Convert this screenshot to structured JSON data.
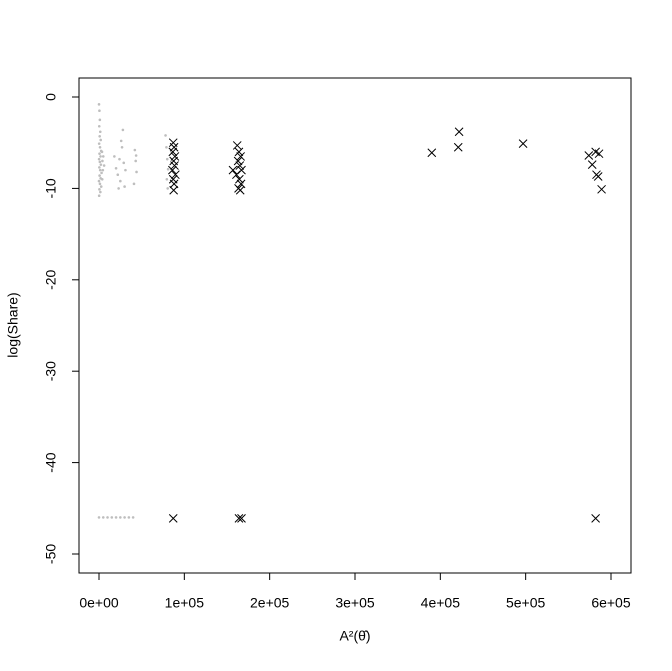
{
  "chart_data": {
    "type": "scatter",
    "xlabel": "A²(θ̂)",
    "ylabel": "log(Share)",
    "xlim": [
      -23440,
      623450
    ],
    "ylim": [
      -52.08,
      2.08
    ],
    "xticks": [
      {
        "value": 0,
        "label": "0e+00"
      },
      {
        "value": 100000,
        "label": "1e+05"
      },
      {
        "value": 200000,
        "label": "2e+05"
      },
      {
        "value": 300000,
        "label": "3e+05"
      },
      {
        "value": 400000,
        "label": "4e+05"
      },
      {
        "value": 500000,
        "label": "5e+05"
      },
      {
        "value": 600000,
        "label": "6e+05"
      }
    ],
    "yticks": [
      0,
      -10,
      -20,
      -30,
      -40,
      -50
    ],
    "grid": false,
    "series": [
      {
        "color": "#bebebe",
        "marker": "dot",
        "x": [
          0,
          500,
          1000,
          300,
          1500,
          800,
          2000,
          200,
          1200,
          2500,
          600,
          1800,
          100,
          1000,
          2200,
          400,
          1400,
          3000,
          700,
          1900,
          0,
          1100,
          2600,
          500,
          1600,
          200,
          3500,
          4000,
          4500,
          3800,
          5000,
          6000,
          18000,
          20000,
          22000,
          24000,
          25000,
          27000,
          28000,
          29000,
          30000,
          31000,
          26000,
          23000,
          42000,
          43000,
          44000,
          41000,
          43500,
          78000,
          79000,
          80000,
          81000,
          79500,
          80500,
          0,
          5000,
          10000,
          15000,
          20000,
          25000,
          30000,
          35000,
          40000
        ],
        "y": [
          -0.8,
          -1.5,
          -2.5,
          -3.2,
          -3.8,
          -4.3,
          -4.7,
          -5.1,
          -5.5,
          -5.9,
          -6.2,
          -6.5,
          -6.8,
          -7.1,
          -7.4,
          -7.7,
          -8.0,
          -8.3,
          -8.6,
          -8.9,
          -9.2,
          -9.5,
          -9.8,
          -10.1,
          -10.4,
          -10.8,
          -6.0,
          -7.0,
          -8.0,
          -9.0,
          -6.5,
          -7.5,
          -6.5,
          -7.8,
          -8.5,
          -6.8,
          -9.2,
          -5.5,
          -3.6,
          -7.2,
          -9.8,
          -8.0,
          -4.8,
          -10.0,
          -5.8,
          -7.0,
          -8.2,
          -9.5,
          -6.4,
          -4.2,
          -5.5,
          -6.8,
          -7.9,
          -9.0,
          -10.0,
          -46,
          -46,
          -46,
          -46,
          -46,
          -46,
          -46,
          -46,
          -46
        ]
      },
      {
        "color": "#000000",
        "marker": "cross",
        "x": [
          87000,
          88000,
          86500,
          89000,
          87500,
          88500,
          86000,
          89500,
          87000,
          88000,
          87500,
          87000,
          162000,
          164000,
          166000,
          163000,
          165000,
          167000,
          161000,
          164500,
          166500,
          163500,
          165500,
          164000,
          167000,
          157000,
          390000,
          422000,
          421000,
          497000,
          574000,
          578000,
          582000,
          586000,
          583000,
          585000,
          589000,
          582000
        ],
        "y": [
          -5.0,
          -5.5,
          -6.0,
          -6.5,
          -7.0,
          -7.5,
          -8.0,
          -8.5,
          -9.0,
          -9.5,
          -10.2,
          -46.1,
          -5.3,
          -6.0,
          -6.5,
          -7.0,
          -7.5,
          -8.0,
          -8.5,
          -9.0,
          -9.5,
          -10.0,
          -10.2,
          -46.1,
          -46.1,
          -8.0,
          -6.1,
          -3.8,
          -5.5,
          -5.1,
          -6.4,
          -7.4,
          -6.0,
          -6.2,
          -8.5,
          -8.7,
          -10.1,
          -46.1
        ]
      }
    ]
  }
}
